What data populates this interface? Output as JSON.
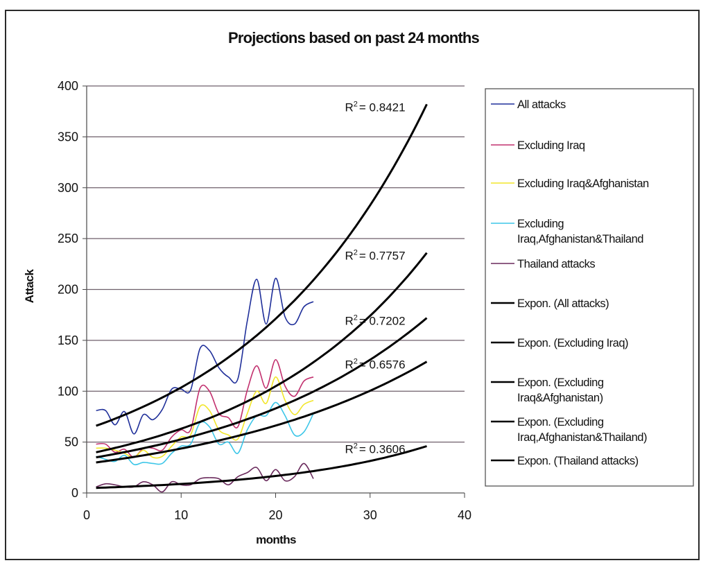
{
  "chart_data": {
    "type": "line",
    "title": "Projections based on past 24 months",
    "xlabel": "months",
    "ylabel": "Attack",
    "xlim": [
      0,
      40
    ],
    "ylim": [
      0,
      400
    ],
    "x_ticks": [
      "0",
      "10",
      "20",
      "30",
      "40"
    ],
    "y_ticks": [
      "0",
      "50",
      "100",
      "150",
      "200",
      "250",
      "300",
      "350",
      "400"
    ],
    "grid": "horizontal",
    "legend_position": "right",
    "x": [
      1,
      2,
      3,
      4,
      5,
      6,
      7,
      8,
      9,
      10,
      11,
      12,
      13,
      14,
      15,
      16,
      17,
      18,
      19,
      20,
      21,
      22,
      23,
      24
    ],
    "series": [
      {
        "name": "All attacks",
        "color": "#1f2f9a",
        "values": [
          81,
          81,
          67,
          80,
          58,
          77,
          72,
          82,
          102,
          102,
          101,
          142,
          140,
          123,
          114,
          112,
          169,
          210,
          166,
          211,
          173,
          166,
          183,
          188
        ]
      },
      {
        "name": "Excluding Iraq",
        "color": "#c2306e",
        "values": [
          48,
          48,
          40,
          43,
          35,
          44,
          44,
          42,
          55,
          62,
          62,
          103,
          100,
          78,
          74,
          65,
          101,
          125,
          103,
          131,
          105,
          95,
          110,
          114
        ]
      },
      {
        "name": "Excluding Iraq&Afghanistan",
        "color": "#f2e62a",
        "values": [
          44,
          44,
          42,
          39,
          35,
          42,
          35,
          36,
          46,
          55,
          57,
          85,
          81,
          62,
          57,
          53,
          78,
          100,
          88,
          114,
          91,
          77,
          87,
          91
        ]
      },
      {
        "name": "Excluding Iraq,Afghanistan&Thailand",
        "color": "#3cc6e8",
        "values": [
          36,
          33,
          31,
          37,
          28,
          30,
          29,
          29,
          39,
          46,
          48,
          69,
          65,
          48,
          50,
          39,
          62,
          76,
          76,
          89,
          76,
          57,
          60,
          78
        ]
      },
      {
        "name": "Thailand attacks",
        "color": "#6a2a5c",
        "values": [
          6,
          9,
          8,
          6,
          6,
          11,
          8,
          1,
          11,
          8,
          8,
          14,
          15,
          14,
          8,
          16,
          20,
          25,
          12,
          23,
          12,
          16,
          29,
          14
        ]
      }
    ],
    "trendlines": [
      {
        "name": "Expon. (All attacks)",
        "type": "exponential",
        "x_range": [
          1,
          36
        ],
        "start_value": 66,
        "end_value": 382,
        "r_squared": "R² = 0.8421",
        "r2_text": "= 0.8421"
      },
      {
        "name": "Expon. (Excluding Iraq)",
        "type": "exponential",
        "x_range": [
          1,
          36
        ],
        "start_value": 40,
        "end_value": 236,
        "r_squared": "R² = 0.7757",
        "r2_text": "= 0.7757"
      },
      {
        "name": "Expon. (Excluding Iraq&Afghanistan)",
        "type": "exponential",
        "x_range": [
          1,
          36
        ],
        "start_value": 35,
        "end_value": 172,
        "r_squared": "R² = 0.7202",
        "r2_text": "= 0.7202"
      },
      {
        "name": "Expon. (Excluding Iraq,Afghanistan&Thailand)",
        "type": "exponential",
        "x_range": [
          1,
          36
        ],
        "start_value": 30,
        "end_value": 129,
        "r_squared": "R² = 0.6576",
        "r2_text": "= 0.6576"
      },
      {
        "name": "Expon. (Thailand attacks)",
        "type": "exponential",
        "x_range": [
          1,
          36
        ],
        "start_value": 5,
        "end_value": 46,
        "r_squared": "R² = 0.3606",
        "r2_text": "= 0.3606"
      }
    ],
    "legend": [
      {
        "lines": [
          "All attacks"
        ],
        "color": "#1f2f9a"
      },
      {
        "lines": [
          "Excluding Iraq"
        ],
        "color": "#c2306e"
      },
      {
        "lines": [
          "Excluding Iraq&Afghanistan"
        ],
        "color": "#f2e62a"
      },
      {
        "lines": [
          "Excluding",
          "Iraq,Afghanistan&Thailand"
        ],
        "color": "#3cc6e8"
      },
      {
        "lines": [
          "Thailand attacks"
        ],
        "color": "#6a2a5c"
      },
      {
        "lines": [
          "Expon. (All attacks)"
        ],
        "color": "#000000"
      },
      {
        "lines": [
          "Expon. (Excluding Iraq)"
        ],
        "color": "#000000"
      },
      {
        "lines": [
          "Expon. (Excluding",
          "Iraq&Afghanistan)"
        ],
        "color": "#000000"
      },
      {
        "lines": [
          "Expon. (Excluding",
          "Iraq,Afghanistan&Thailand)"
        ],
        "color": "#000000"
      },
      {
        "lines": [
          "Expon. (Thailand attacks)"
        ],
        "color": "#000000"
      }
    ]
  }
}
